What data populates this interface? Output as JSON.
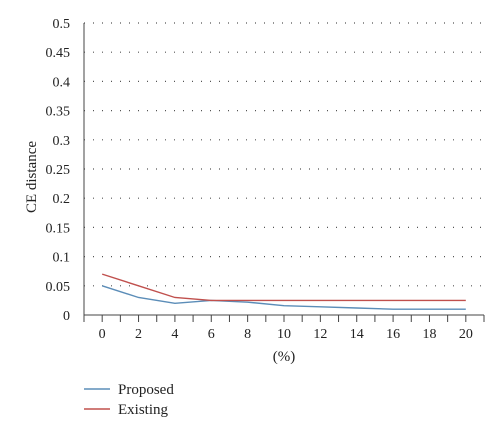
{
  "chart_data": {
    "type": "line",
    "title": "",
    "xlabel": "(%)",
    "ylabel": "CE distance",
    "x": [
      0,
      2,
      4,
      6,
      8,
      10,
      12,
      14,
      16,
      18,
      20
    ],
    "xticks": [
      "0",
      "2",
      "4",
      "6",
      "8",
      "10",
      "12",
      "14",
      "16",
      "18",
      "20"
    ],
    "yticks": [
      "0",
      "0.05",
      "0.1",
      "0.15",
      "0.2",
      "0.25",
      "0.3",
      "0.35",
      "0.4",
      "0.45",
      "0.5"
    ],
    "xlim": [
      -1,
      21
    ],
    "ylim": [
      0,
      0.5
    ],
    "grid": "horizontal-dotted",
    "legend_position": "bottom-left",
    "series": [
      {
        "name": "Proposed",
        "color": "#5b8db8",
        "values": [
          0.05,
          0.03,
          0.02,
          0.025,
          0.022,
          0.016,
          0.014,
          0.012,
          0.01,
          0.01,
          0.01
        ]
      },
      {
        "name": "Existing",
        "color": "#c0504d",
        "values": [
          0.07,
          0.05,
          0.03,
          0.025,
          0.025,
          0.025,
          0.025,
          0.025,
          0.025,
          0.025,
          0.025
        ]
      }
    ]
  }
}
